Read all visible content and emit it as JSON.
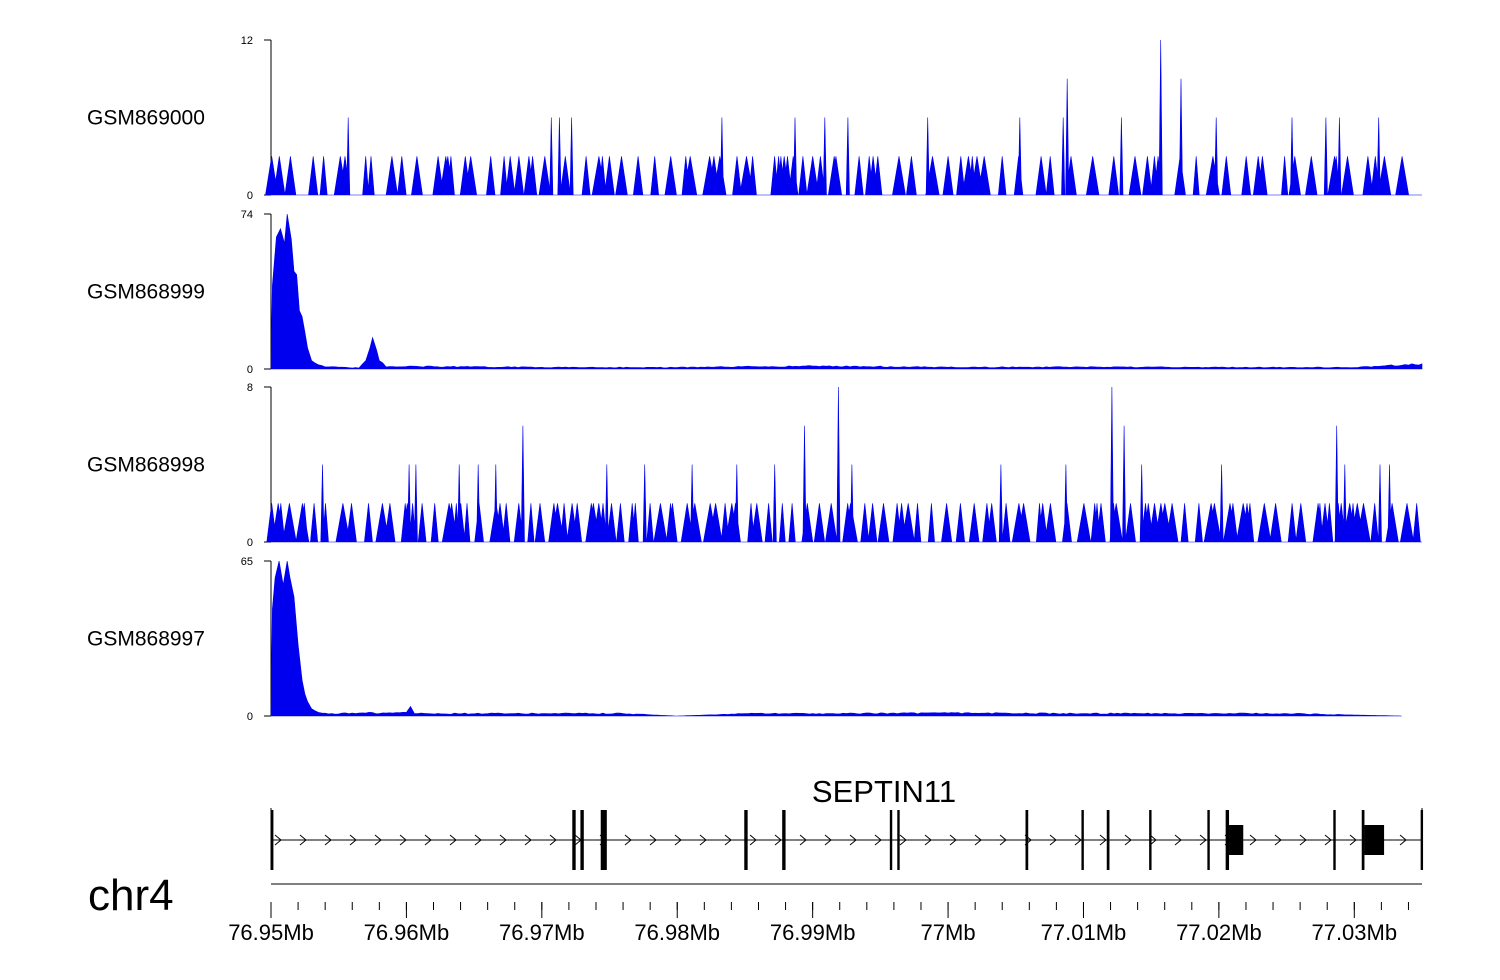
{
  "chart_data": {
    "type": "area",
    "chromosome": "chr4",
    "region": {
      "start_mb": 76.95,
      "end_mb": 77.035
    },
    "x_axis": {
      "tick_labels": [
        "76.95Mb",
        "76.96Mb",
        "76.97Mb",
        "76.98Mb",
        "76.99Mb",
        "77Mb",
        "77.01Mb",
        "77.02Mb",
        "77.03Mb"
      ],
      "tick_values": [
        76.95,
        76.96,
        76.97,
        76.98,
        76.99,
        77.0,
        77.01,
        77.02,
        77.03
      ]
    },
    "color": "#0000ee",
    "tracks": [
      {
        "name": "GSM869000",
        "ymin_label": "0",
        "ymax_label": "12",
        "ylim": [
          0,
          12
        ],
        "baseline": 3,
        "peaks": [
          [
            76.9557,
            6
          ],
          [
            76.9707,
            6
          ],
          [
            76.9713,
            6
          ],
          [
            76.9722,
            6
          ],
          [
            76.9833,
            6
          ],
          [
            76.9887,
            6
          ],
          [
            76.9909,
            6
          ],
          [
            76.9926,
            6
          ],
          [
            76.9985,
            6
          ],
          [
            77.0053,
            6
          ],
          [
            77.0085,
            6
          ],
          [
            77.0088,
            9
          ],
          [
            77.0128,
            6
          ],
          [
            77.0157,
            12
          ],
          [
            77.0172,
            9
          ],
          [
            77.0198,
            6
          ],
          [
            77.0254,
            6
          ],
          [
            77.0279,
            6
          ],
          [
            77.0289,
            6
          ],
          [
            77.0318,
            6
          ]
        ]
      },
      {
        "name": "GSM868999",
        "ymin_label": "0",
        "ymax_label": "74",
        "ylim": [
          0,
          74
        ],
        "profile": [
          [
            76.95,
            0
          ],
          [
            76.9501,
            40
          ],
          [
            76.9504,
            63
          ],
          [
            76.9507,
            67
          ],
          [
            76.951,
            60
          ],
          [
            76.9512,
            74
          ],
          [
            76.9515,
            62
          ],
          [
            76.9519,
            45
          ],
          [
            76.9523,
            25
          ],
          [
            76.9527,
            10
          ],
          [
            76.953,
            4
          ],
          [
            76.9535,
            2
          ],
          [
            76.954,
            1
          ],
          [
            76.9565,
            0.5
          ],
          [
            76.957,
            4
          ],
          [
            76.9573,
            10
          ],
          [
            76.9575,
            15
          ],
          [
            76.9578,
            9
          ],
          [
            76.958,
            4
          ],
          [
            76.9585,
            1
          ],
          [
            76.96,
            1.2
          ],
          [
            76.97,
            0.8
          ],
          [
            76.98,
            0.7
          ],
          [
            76.99,
            1.4
          ],
          [
            77.0,
            0.8
          ],
          [
            77.01,
            0.9
          ],
          [
            77.02,
            0.8
          ],
          [
            77.03,
            0.7
          ],
          [
            77.035,
            2.5
          ]
        ]
      },
      {
        "name": "GSM868998",
        "ymin_label": "0",
        "ymax_label": "8",
        "ylim": [
          0,
          8
        ],
        "baseline": 2,
        "peaks": [
          [
            76.9538,
            4
          ],
          [
            76.9602,
            4
          ],
          [
            76.9607,
            4
          ],
          [
            76.9639,
            4
          ],
          [
            76.9653,
            4
          ],
          [
            76.9666,
            4
          ],
          [
            76.9686,
            6
          ],
          [
            76.9748,
            4
          ],
          [
            76.9776,
            4
          ],
          [
            76.9811,
            4
          ],
          [
            76.9844,
            4
          ],
          [
            76.9872,
            4
          ],
          [
            76.9894,
            6
          ],
          [
            76.9919,
            8
          ],
          [
            76.9929,
            4
          ],
          [
            77.0039,
            4
          ],
          [
            77.0087,
            4
          ],
          [
            77.0121,
            8
          ],
          [
            77.013,
            6
          ],
          [
            77.0143,
            4
          ],
          [
            77.0202,
            4
          ],
          [
            77.0287,
            6
          ],
          [
            77.0293,
            4
          ],
          [
            77.0319,
            4
          ],
          [
            77.0326,
            4
          ]
        ]
      },
      {
        "name": "GSM868997",
        "ymin_label": "0",
        "ymax_label": "65",
        "ylim": [
          0,
          65
        ],
        "profile": [
          [
            76.95,
            0
          ],
          [
            76.9501,
            45
          ],
          [
            76.9503,
            58
          ],
          [
            76.9506,
            65
          ],
          [
            76.9509,
            55
          ],
          [
            76.9512,
            65
          ],
          [
            76.9514,
            58
          ],
          [
            76.9517,
            50
          ],
          [
            76.952,
            30
          ],
          [
            76.9523,
            15
          ],
          [
            76.9527,
            6
          ],
          [
            76.953,
            3
          ],
          [
            76.9535,
            1.5
          ],
          [
            76.9545,
            1
          ],
          [
            76.96,
            1.5
          ],
          [
            76.9603,
            4
          ],
          [
            76.9606,
            1
          ],
          [
            76.97,
            1
          ],
          [
            76.976,
            1
          ],
          [
            76.98,
            0
          ],
          [
            76.985,
            1
          ],
          [
            76.99,
            1
          ],
          [
            77.0,
            1.2
          ],
          [
            77.01,
            1
          ],
          [
            77.02,
            1
          ],
          [
            77.025,
            1
          ],
          [
            77.0335,
            0
          ]
        ]
      }
    ],
    "gene": {
      "name": "SEPTIN11",
      "start_mb": 76.95,
      "end_mb": 77.035,
      "strand": "+",
      "exons": [
        [
          76.95,
          76.95005
        ],
        [
          76.97225,
          76.9725
        ],
        [
          76.97285,
          76.9731
        ],
        [
          76.97435,
          76.9748
        ],
        [
          76.98495,
          76.9852
        ],
        [
          76.98775,
          76.988
        ],
        [
          76.9957,
          76.99585
        ],
        [
          76.99625,
          76.9964
        ],
        [
          77.00572,
          77.00592
        ],
        [
          77.00985,
          77.01
        ],
        [
          77.01172,
          77.01192
        ],
        [
          77.01485,
          77.01502
        ],
        [
          77.01915,
          77.01932
        ],
        [
          77.0205,
          77.02075
        ],
        [
          77.02075,
          77.0218
        ],
        [
          77.02845,
          77.0286
        ],
        [
          77.03055,
          77.03075
        ],
        [
          77.03075,
          77.0322
        ],
        [
          77.0349,
          77.03505
        ]
      ]
    }
  }
}
